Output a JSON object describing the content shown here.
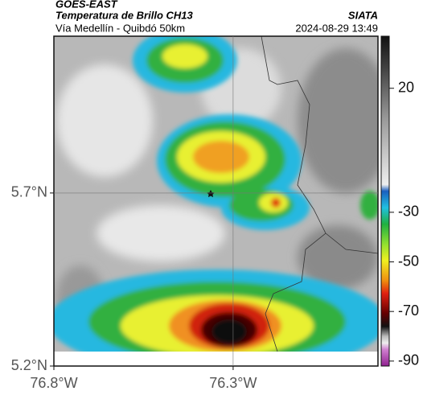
{
  "header": {
    "title": "GOES-EAST",
    "subtitle": "Temperatura de Brillo CH13",
    "source": "SIATA",
    "route": "Vía Medellín - Quibdó 50km",
    "timestamp": "2024-08-29 13:49"
  },
  "map": {
    "xlim": [
      -76.8,
      -75.896
    ],
    "ylim": [
      5.2,
      6.153
    ],
    "xticks": [
      {
        "value": -76.8,
        "label": "76.8°W"
      },
      {
        "value": -76.3,
        "label": "76.3°W"
      }
    ],
    "yticks": [
      {
        "value": 5.2,
        "label": "5.2°N"
      },
      {
        "value": 5.7,
        "label": "5.7°N"
      }
    ]
  },
  "colorbar": {
    "clim": [
      -92,
      41
    ],
    "ticks": [
      20,
      -30,
      -50,
      -70,
      -90
    ]
  }
}
